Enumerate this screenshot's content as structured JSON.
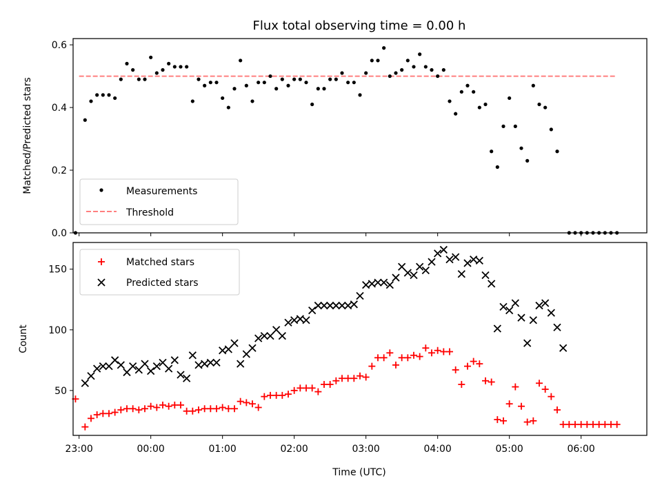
{
  "title": "Flux total observing time = 0.00 h",
  "chart_data": [
    {
      "type": "scatter",
      "ylabel": "Matched/Predicted stars",
      "ylim": [
        0,
        0.62
      ],
      "yticks": [
        "0.0",
        "0.2",
        "0.4",
        "0.6"
      ],
      "xlim": [
        "22:55",
        "06:55"
      ],
      "legend_position": "bottom-left",
      "threshold": {
        "name": "Threshold",
        "value": 0.5,
        "x_start": "23:00",
        "x_end": "06:30",
        "color": "#ff7f7f"
      },
      "series": [
        {
          "name": "Measurements",
          "color": "#000000",
          "points": [
            [
              "22:57",
              0.0
            ],
            [
              "23:05",
              0.36
            ],
            [
              "23:10",
              0.42
            ],
            [
              "23:15",
              0.44
            ],
            [
              "23:20",
              0.44
            ],
            [
              "23:25",
              0.44
            ],
            [
              "23:30",
              0.43
            ],
            [
              "23:35",
              0.49
            ],
            [
              "23:40",
              0.54
            ],
            [
              "23:45",
              0.52
            ],
            [
              "23:50",
              0.49
            ],
            [
              "23:55",
              0.49
            ],
            [
              "00:00",
              0.56
            ],
            [
              "00:05",
              0.51
            ],
            [
              "00:10",
              0.52
            ],
            [
              "00:15",
              0.54
            ],
            [
              "00:20",
              0.53
            ],
            [
              "00:25",
              0.53
            ],
            [
              "00:30",
              0.53
            ],
            [
              "00:35",
              0.42
            ],
            [
              "00:40",
              0.49
            ],
            [
              "00:45",
              0.47
            ],
            [
              "00:50",
              0.48
            ],
            [
              "00:55",
              0.48
            ],
            [
              "01:00",
              0.43
            ],
            [
              "01:05",
              0.4
            ],
            [
              "01:10",
              0.46
            ],
            [
              "01:15",
              0.55
            ],
            [
              "01:20",
              0.47
            ],
            [
              "01:25",
              0.42
            ],
            [
              "01:30",
              0.48
            ],
            [
              "01:35",
              0.48
            ],
            [
              "01:40",
              0.5
            ],
            [
              "01:45",
              0.46
            ],
            [
              "01:50",
              0.49
            ],
            [
              "01:55",
              0.47
            ],
            [
              "02:00",
              0.49
            ],
            [
              "02:05",
              0.49
            ],
            [
              "02:10",
              0.48
            ],
            [
              "02:15",
              0.41
            ],
            [
              "02:20",
              0.46
            ],
            [
              "02:25",
              0.46
            ],
            [
              "02:30",
              0.49
            ],
            [
              "02:35",
              0.49
            ],
            [
              "02:40",
              0.51
            ],
            [
              "02:45",
              0.48
            ],
            [
              "02:50",
              0.48
            ],
            [
              "02:55",
              0.44
            ],
            [
              "03:00",
              0.51
            ],
            [
              "03:05",
              0.55
            ],
            [
              "03:10",
              0.55
            ],
            [
              "03:15",
              0.59
            ],
            [
              "03:20",
              0.5
            ],
            [
              "03:25",
              0.51
            ],
            [
              "03:30",
              0.52
            ],
            [
              "03:35",
              0.55
            ],
            [
              "03:40",
              0.53
            ],
            [
              "03:45",
              0.57
            ],
            [
              "03:50",
              0.53
            ],
            [
              "03:55",
              0.52
            ],
            [
              "04:00",
              0.5
            ],
            [
              "04:05",
              0.52
            ],
            [
              "04:10",
              0.42
            ],
            [
              "04:15",
              0.38
            ],
            [
              "04:20",
              0.45
            ],
            [
              "04:25",
              0.47
            ],
            [
              "04:30",
              0.45
            ],
            [
              "04:35",
              0.4
            ],
            [
              "04:40",
              0.41
            ],
            [
              "04:45",
              0.26
            ],
            [
              "04:50",
              0.21
            ],
            [
              "04:55",
              0.34
            ],
            [
              "05:00",
              0.43
            ],
            [
              "05:05",
              0.34
            ],
            [
              "05:10",
              0.27
            ],
            [
              "05:15",
              0.23
            ],
            [
              "05:20",
              0.47
            ],
            [
              "05:25",
              0.41
            ],
            [
              "05:30",
              0.4
            ],
            [
              "05:35",
              0.33
            ],
            [
              "05:40",
              0.26
            ],
            [
              "05:50",
              0.0
            ],
            [
              "05:55",
              0.0
            ],
            [
              "06:00",
              0.0
            ],
            [
              "06:05",
              0.0
            ],
            [
              "06:10",
              0.0
            ],
            [
              "06:15",
              0.0
            ],
            [
              "06:20",
              0.0
            ],
            [
              "06:25",
              0.0
            ],
            [
              "06:30",
              0.0
            ]
          ]
        }
      ]
    },
    {
      "type": "scatter",
      "xlabel": "Time (UTC)",
      "ylabel": "Count",
      "ylim": [
        13,
        172
      ],
      "yticks": [
        "50",
        "100",
        "150"
      ],
      "xlim": [
        "22:55",
        "06:55"
      ],
      "xticks": [
        "23:00",
        "00:00",
        "01:00",
        "02:00",
        "03:00",
        "04:00",
        "05:00",
        "06:00"
      ],
      "legend_position": "top-left",
      "series": [
        {
          "name": "Matched stars",
          "color": "#ff0000",
          "marker": "plus",
          "points": [
            [
              "22:57",
              43
            ],
            [
              "23:05",
              20
            ],
            [
              "23:10",
              27
            ],
            [
              "23:15",
              30
            ],
            [
              "23:20",
              31
            ],
            [
              "23:25",
              31
            ],
            [
              "23:30",
              32
            ],
            [
              "23:35",
              34
            ],
            [
              "23:40",
              35
            ],
            [
              "23:45",
              35
            ],
            [
              "23:50",
              34
            ],
            [
              "23:55",
              35
            ],
            [
              "00:00",
              37
            ],
            [
              "00:05",
              36
            ],
            [
              "00:10",
              38
            ],
            [
              "00:15",
              37
            ],
            [
              "00:20",
              38
            ],
            [
              "00:25",
              38
            ],
            [
              "00:30",
              33
            ],
            [
              "00:35",
              33
            ],
            [
              "00:40",
              34
            ],
            [
              "00:45",
              35
            ],
            [
              "00:50",
              35
            ],
            [
              "00:55",
              35
            ],
            [
              "01:00",
              36
            ],
            [
              "01:05",
              35
            ],
            [
              "01:10",
              35
            ],
            [
              "01:15",
              41
            ],
            [
              "01:20",
              40
            ],
            [
              "01:25",
              39
            ],
            [
              "01:30",
              36
            ],
            [
              "01:35",
              45
            ],
            [
              "01:40",
              46
            ],
            [
              "01:45",
              46
            ],
            [
              "01:50",
              46
            ],
            [
              "01:55",
              47
            ],
            [
              "02:00",
              50
            ],
            [
              "02:05",
              52
            ],
            [
              "02:10",
              52
            ],
            [
              "02:15",
              52
            ],
            [
              "02:20",
              49
            ],
            [
              "02:25",
              55
            ],
            [
              "02:30",
              55
            ],
            [
              "02:35",
              58
            ],
            [
              "02:40",
              60
            ],
            [
              "02:45",
              60
            ],
            [
              "02:50",
              60
            ],
            [
              "02:55",
              62
            ],
            [
              "03:00",
              61
            ],
            [
              "03:05",
              70
            ],
            [
              "03:10",
              77
            ],
            [
              "03:15",
              77
            ],
            [
              "03:20",
              81
            ],
            [
              "03:25",
              71
            ],
            [
              "03:30",
              77
            ],
            [
              "03:35",
              77
            ],
            [
              "03:40",
              79
            ],
            [
              "03:45",
              78
            ],
            [
              "03:50",
              85
            ],
            [
              "03:55",
              81
            ],
            [
              "04:00",
              83
            ],
            [
              "04:05",
              82
            ],
            [
              "04:10",
              82
            ],
            [
              "04:15",
              67
            ],
            [
              "04:20",
              55
            ],
            [
              "04:25",
              70
            ],
            [
              "04:30",
              74
            ],
            [
              "04:35",
              72
            ],
            [
              "04:40",
              58
            ],
            [
              "04:45",
              57
            ],
            [
              "04:50",
              26
            ],
            [
              "04:55",
              25
            ],
            [
              "05:00",
              39
            ],
            [
              "05:05",
              53
            ],
            [
              "05:10",
              37
            ],
            [
              "05:15",
              24
            ],
            [
              "05:20",
              25
            ],
            [
              "05:25",
              56
            ],
            [
              "05:30",
              51
            ],
            [
              "05:35",
              45
            ],
            [
              "05:40",
              34
            ],
            [
              "05:45",
              22
            ],
            [
              "05:50",
              22
            ],
            [
              "05:55",
              22
            ],
            [
              "06:00",
              22
            ],
            [
              "06:05",
              22
            ],
            [
              "06:10",
              22
            ],
            [
              "06:15",
              22
            ],
            [
              "06:20",
              22
            ],
            [
              "06:25",
              22
            ],
            [
              "06:30",
              22
            ]
          ]
        },
        {
          "name": "Predicted stars",
          "color": "#000000",
          "marker": "x",
          "points": [
            [
              "23:05",
              56
            ],
            [
              "23:10",
              62
            ],
            [
              "23:15",
              68
            ],
            [
              "23:20",
              70
            ],
            [
              "23:25",
              70
            ],
            [
              "23:30",
              75
            ],
            [
              "23:35",
              71
            ],
            [
              "23:40",
              65
            ],
            [
              "23:45",
              70
            ],
            [
              "23:50",
              67
            ],
            [
              "23:55",
              72
            ],
            [
              "00:00",
              66
            ],
            [
              "00:05",
              70
            ],
            [
              "00:10",
              73
            ],
            [
              "00:15",
              68
            ],
            [
              "00:20",
              75
            ],
            [
              "00:25",
              63
            ],
            [
              "00:30",
              60
            ],
            [
              "00:35",
              79
            ],
            [
              "00:40",
              71
            ],
            [
              "00:45",
              72
            ],
            [
              "00:50",
              73
            ],
            [
              "00:55",
              73
            ],
            [
              "01:00",
              83
            ],
            [
              "01:05",
              84
            ],
            [
              "01:10",
              89
            ],
            [
              "01:15",
              72
            ],
            [
              "01:20",
              80
            ],
            [
              "01:25",
              85
            ],
            [
              "01:30",
              93
            ],
            [
              "01:35",
              95
            ],
            [
              "01:40",
              95
            ],
            [
              "01:45",
              100
            ],
            [
              "01:50",
              95
            ],
            [
              "01:55",
              106
            ],
            [
              "02:00",
              108
            ],
            [
              "02:05",
              109
            ],
            [
              "02:10",
              108
            ],
            [
              "02:15",
              116
            ],
            [
              "02:20",
              120
            ],
            [
              "02:25",
              120
            ],
            [
              "02:30",
              120
            ],
            [
              "02:35",
              120
            ],
            [
              "02:40",
              120
            ],
            [
              "02:45",
              120
            ],
            [
              "02:50",
              121
            ],
            [
              "02:55",
              128
            ],
            [
              "03:00",
              137
            ],
            [
              "03:05",
              138
            ],
            [
              "03:10",
              139
            ],
            [
              "03:15",
              139
            ],
            [
              "03:20",
              137
            ],
            [
              "03:25",
              143
            ],
            [
              "03:30",
              152
            ],
            [
              "03:35",
              147
            ],
            [
              "03:40",
              145
            ],
            [
              "03:45",
              152
            ],
            [
              "03:50",
              149
            ],
            [
              "03:55",
              156
            ],
            [
              "04:00",
              163
            ],
            [
              "04:05",
              166
            ],
            [
              "04:10",
              158
            ],
            [
              "04:15",
              160
            ],
            [
              "04:20",
              146
            ],
            [
              "04:25",
              155
            ],
            [
              "04:30",
              158
            ],
            [
              "04:35",
              157
            ],
            [
              "04:40",
              145
            ],
            [
              "04:45",
              138
            ],
            [
              "04:50",
              101
            ],
            [
              "04:55",
              119
            ],
            [
              "05:00",
              116
            ],
            [
              "05:05",
              122
            ],
            [
              "05:10",
              110
            ],
            [
              "05:15",
              89
            ],
            [
              "05:20",
              108
            ],
            [
              "05:25",
              120
            ],
            [
              "05:30",
              122
            ],
            [
              "05:35",
              114
            ],
            [
              "05:40",
              102
            ],
            [
              "05:45",
              85
            ]
          ]
        }
      ]
    }
  ]
}
